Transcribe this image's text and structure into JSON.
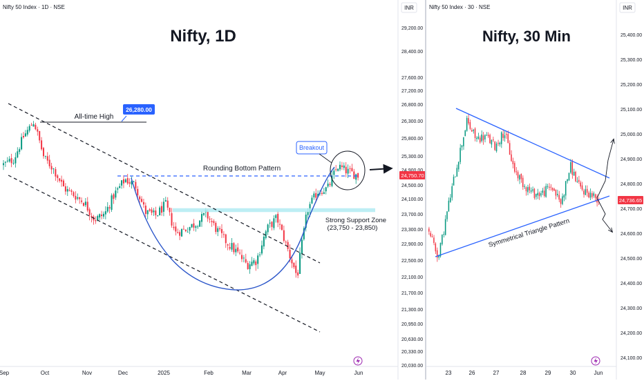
{
  "colors": {
    "up": "#089981",
    "down": "#f23645",
    "blue": "#2962ff",
    "curve": "#2a55c9",
    "axis_text": "#131722",
    "grid": "#e0e3eb",
    "support": "#b2ebf2",
    "badge_red": "#f23645",
    "badge_blue": "#2962ff"
  },
  "left_panel": {
    "symbol_header": "Nifty 50 Index · 1D · NSE",
    "currency": "INR",
    "big_title": "Nifty, 1D",
    "annotations": {
      "ath_label": "All-time High",
      "ath_value": "26,280.00",
      "breakout": "Breakout",
      "rounding_bottom": "Rounding Bottom Pattern",
      "support_line1": "Strong Support Zone",
      "support_line2": "(23,750 - 23,850)"
    },
    "last_price": "24,750.70",
    "lightning_icon": "lightning-icon"
  },
  "right_panel": {
    "symbol_header": "Nifty 50 Index · 30 · NSE",
    "currency": "INR",
    "big_title": "Nifty, 30 Min",
    "annotations": {
      "triangle": "Symmetrical Triangle Pattern"
    },
    "last_price": "24,736.65",
    "lightning_icon": "lightning-icon"
  },
  "chart_data": [
    {
      "type": "candlestick",
      "title": "Nifty, 1D",
      "x_tick_labels": [
        "Sep",
        "Oct",
        "Nov",
        "Dec",
        "2025",
        "Feb",
        "Mar",
        "Apr",
        "May",
        "Jun"
      ],
      "y_tick_labels": [
        "29,200.00",
        "28,400.00",
        "27,600.00",
        "27,200.00",
        "26,800.00",
        "26,300.00",
        "25,800.00",
        "25,300.00",
        "24,900.00",
        "24,500.00",
        "24,100.00",
        "23,700.00",
        "23,300.00",
        "22,900.00",
        "22,500.00",
        "22,100.00",
        "21,700.00",
        "21,300.00",
        "20,950.00",
        "20,630.00",
        "20,330.00",
        "20,030.00"
      ],
      "all_time_high": 26280,
      "support_zone": [
        23750,
        23850
      ],
      "last_price": 24750.7,
      "waypoints": [
        [
          "Sep",
          25050
        ],
        [
          "Sep wk2",
          25200
        ],
        [
          "Sep wk3",
          25850
        ],
        [
          "Sep end",
          26280
        ],
        [
          "Oct wk1",
          25250
        ],
        [
          "Oct wk2",
          24900
        ],
        [
          "Oct wk3",
          24400
        ],
        [
          "Oct end",
          24200
        ],
        [
          "Nov wk1",
          24000
        ],
        [
          "Nov wk2",
          23550
        ],
        [
          "Nov wk3",
          23700
        ],
        [
          "Nov end",
          24250
        ],
        [
          "Dec wk1",
          24650
        ],
        [
          "Dec wk2",
          24500
        ],
        [
          "Dec wk3",
          23750
        ],
        [
          "Dec end",
          23650
        ],
        [
          "Jan wk1",
          23950
        ],
        [
          "Jan wk2",
          23200
        ],
        [
          "Jan wk3",
          23300
        ],
        [
          "Jan end",
          23450
        ],
        [
          "Feb wk1",
          23700
        ],
        [
          "Feb wk2",
          23300
        ],
        [
          "Feb wk3",
          22950
        ],
        [
          "Feb end",
          22700
        ],
        [
          "Mar wk1",
          22400
        ],
        [
          "Mar wk2",
          22500
        ],
        [
          "Mar wk3",
          23300
        ],
        [
          "Mar end",
          23600
        ],
        [
          "Apr wk1",
          22800
        ],
        [
          "Apr wk2",
          22100
        ],
        [
          "Apr wk3",
          23800
        ],
        [
          "Apr end",
          24300
        ],
        [
          "May wk1",
          24400
        ],
        [
          "May wk2",
          25000
        ],
        [
          "May wk3",
          24850
        ],
        [
          "May end",
          24750
        ]
      ]
    },
    {
      "type": "candlestick",
      "title": "Nifty, 30 Min",
      "x_tick_labels": [
        "23",
        "26",
        "27",
        "28",
        "29",
        "30",
        "Jun"
      ],
      "y_tick_labels": [
        "25,400.00",
        "25,300.00",
        "25,200.00",
        "25,100.00",
        "25,000.00",
        "24,900.00",
        "24,800.00",
        "24,700.00",
        "24,600.00",
        "24,500.00",
        "24,400.00",
        "24,300.00",
        "24,200.00",
        "24,100.00"
      ],
      "last_price": 24736.65,
      "triangle_upper": [
        [
          22,
          25080
        ],
        [
          31,
          24810
        ]
      ],
      "triangle_lower": [
        [
          22,
          24480
        ],
        [
          31,
          24760
        ]
      ],
      "waypoints": [
        [
          "22",
          24620
        ],
        [
          "22 end",
          24500
        ],
        [
          "23 mid",
          24700
        ],
        [
          "23 end",
          24880
        ],
        [
          "26 open",
          25050
        ],
        [
          "26 mid",
          24980
        ],
        [
          "26 end",
          24990
        ],
        [
          "27 open",
          24950
        ],
        [
          "27 mid",
          25010
        ],
        [
          "27 end",
          24860
        ],
        [
          "28 open",
          24800
        ],
        [
          "28 mid",
          24760
        ],
        [
          "28 end",
          24760
        ],
        [
          "29 mid",
          24790
        ],
        [
          "29 end",
          24720
        ],
        [
          "30 open",
          24870
        ],
        [
          "30 mid",
          24780
        ],
        [
          "30 end",
          24760
        ],
        [
          "Jun",
          24736.65
        ]
      ]
    }
  ]
}
